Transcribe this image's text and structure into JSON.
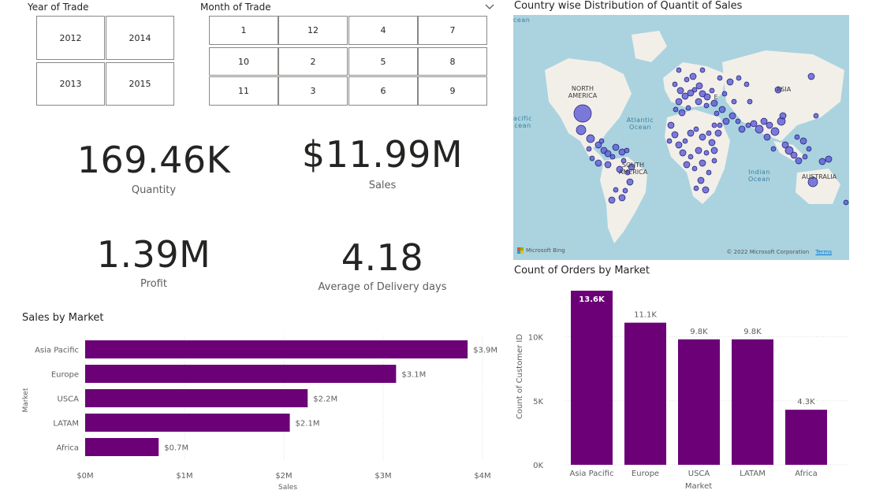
{
  "year_slicer": {
    "title": "Year of Trade",
    "options": [
      "2012",
      "2014",
      "2013",
      "2015"
    ]
  },
  "month_slicer": {
    "title": "Month of Trade",
    "options": [
      "1",
      "12",
      "4",
      "7",
      "10",
      "2",
      "5",
      "8",
      "11",
      "3",
      "6",
      "9"
    ]
  },
  "kpis": {
    "quantity": {
      "value": "169.46K",
      "label": "Quantity"
    },
    "sales": {
      "value": "$11.99M",
      "label": "Sales"
    },
    "profit": {
      "value": "1.39M",
      "label": "Profit"
    },
    "delivery": {
      "value": "4.18",
      "label": "Average of Delivery days"
    }
  },
  "map": {
    "title": "Country wise Distribution of Quantit of Sales",
    "labels": {
      "north_america": "NORTH AMERICA",
      "south_america": "SOUTH AMERICA",
      "asia": "ASIA",
      "australia": "AUSTRALIA",
      "europe": "E"
    },
    "oceans": {
      "atlantic": "Atlantic Ocean",
      "indian": "Indian Ocean",
      "pacific": "acific cean",
      "pacific_top": "cean"
    },
    "brand": "Microsoft Bing",
    "copyright": "© 2022 Microsoft Corporation",
    "terms": "Terms",
    "land_color": "#f2efe9",
    "water_color": "#aad3df",
    "bubble_color": "#5b5bd6"
  },
  "sales_by_market": {
    "title": "Sales by Market",
    "chart_data": {
      "type": "bar",
      "orientation": "horizontal",
      "categories": [
        "Asia Pacific",
        "Europe",
        "USCA",
        "LATAM",
        "Africa"
      ],
      "values": [
        3.85,
        3.13,
        2.24,
        2.06,
        0.74
      ],
      "data_labels": [
        "$3.9M",
        "$3.1M",
        "$2.2M",
        "$2.1M",
        "$0.7M"
      ],
      "x_ticks": [
        0,
        1,
        2,
        3,
        4
      ],
      "x_tick_labels": [
        "$0M",
        "$1M",
        "$2M",
        "$3M",
        "$4M"
      ],
      "xlim": [
        0,
        4
      ],
      "xlabel": "Sales",
      "ylabel": "Market",
      "color": "#6b0077",
      "grid": true
    }
  },
  "orders_by_market": {
    "title": "Count of Orders by Market",
    "chart_data": {
      "type": "bar",
      "orientation": "vertical",
      "categories": [
        "Asia Pacific",
        "Europe",
        "USCA",
        "LATAM",
        "Africa"
      ],
      "values": [
        13.6,
        11.1,
        9.8,
        9.8,
        4.3
      ],
      "data_labels": [
        "13.6K",
        "11.1K",
        "9.8K",
        "9.8K",
        "4.3K"
      ],
      "y_ticks": [
        0,
        5,
        10
      ],
      "y_tick_labels": [
        "0K",
        "5K",
        "10K"
      ],
      "ylim": [
        0,
        13.6
      ],
      "xlabel": "Market",
      "ylabel": "Count of Customer ID",
      "color": "#6b0077",
      "grid": true
    }
  }
}
